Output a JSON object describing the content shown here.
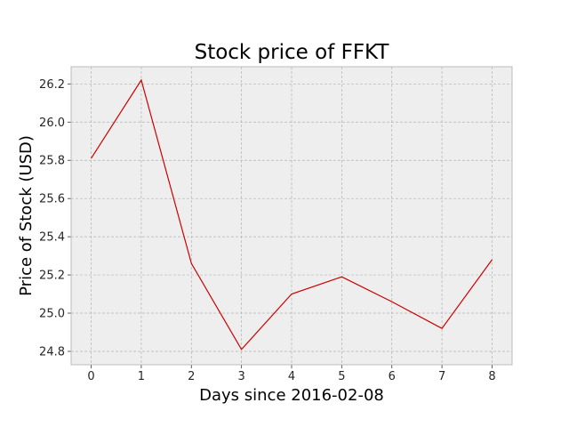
{
  "chart_data": {
    "type": "line",
    "title": "Stock price of FFKT",
    "xlabel": "Days since 2016-02-08",
    "ylabel": "Price of Stock (USD)",
    "x": [
      0,
      1,
      2,
      3,
      4,
      5,
      6,
      7,
      8
    ],
    "series": [
      {
        "values": [
          25.81,
          26.22,
          25.26,
          24.81,
          25.1,
          25.19,
          25.06,
          24.92,
          25.28
        ]
      }
    ],
    "xticks": [
      "0",
      "1",
      "2",
      "3",
      "4",
      "5",
      "6",
      "7",
      "8"
    ],
    "yticks": [
      "24.8",
      "25.0",
      "25.2",
      "25.4",
      "25.6",
      "25.8",
      "26.0",
      "26.2"
    ],
    "xlim": [
      -0.4,
      8.4
    ],
    "ylim": [
      24.73,
      26.29
    ],
    "grid": true,
    "colors": {
      "line": "#cc0000",
      "plot_bg": "#eeeeee",
      "grid": "#b3b3b3",
      "frame": "#bcbcbc"
    }
  }
}
